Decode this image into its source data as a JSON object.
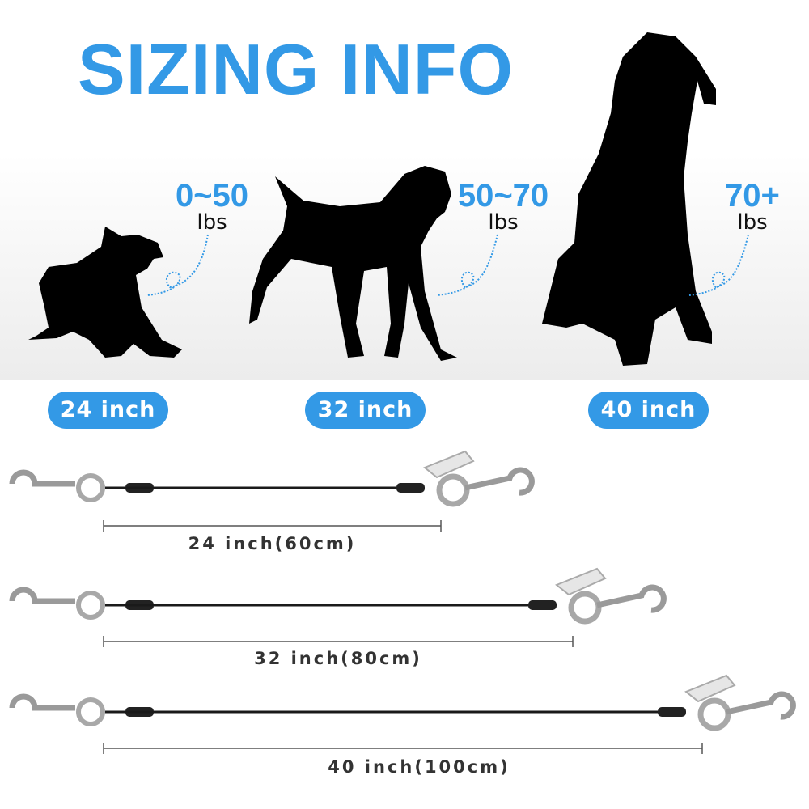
{
  "title": "SIZING INFO",
  "accent_color": "#3399e6",
  "dogs": [
    {
      "weight": "0~50",
      "unit": "lbs",
      "size": "24 inch"
    },
    {
      "weight": "50~70",
      "unit": "lbs",
      "size": "32 inch"
    },
    {
      "weight": "70+",
      "unit": "lbs",
      "size": "40 inch"
    }
  ],
  "leashes": [
    {
      "label": "24 inch(60cm)"
    },
    {
      "label": "32 inch(80cm)"
    },
    {
      "label": "40 inch(100cm)"
    }
  ]
}
